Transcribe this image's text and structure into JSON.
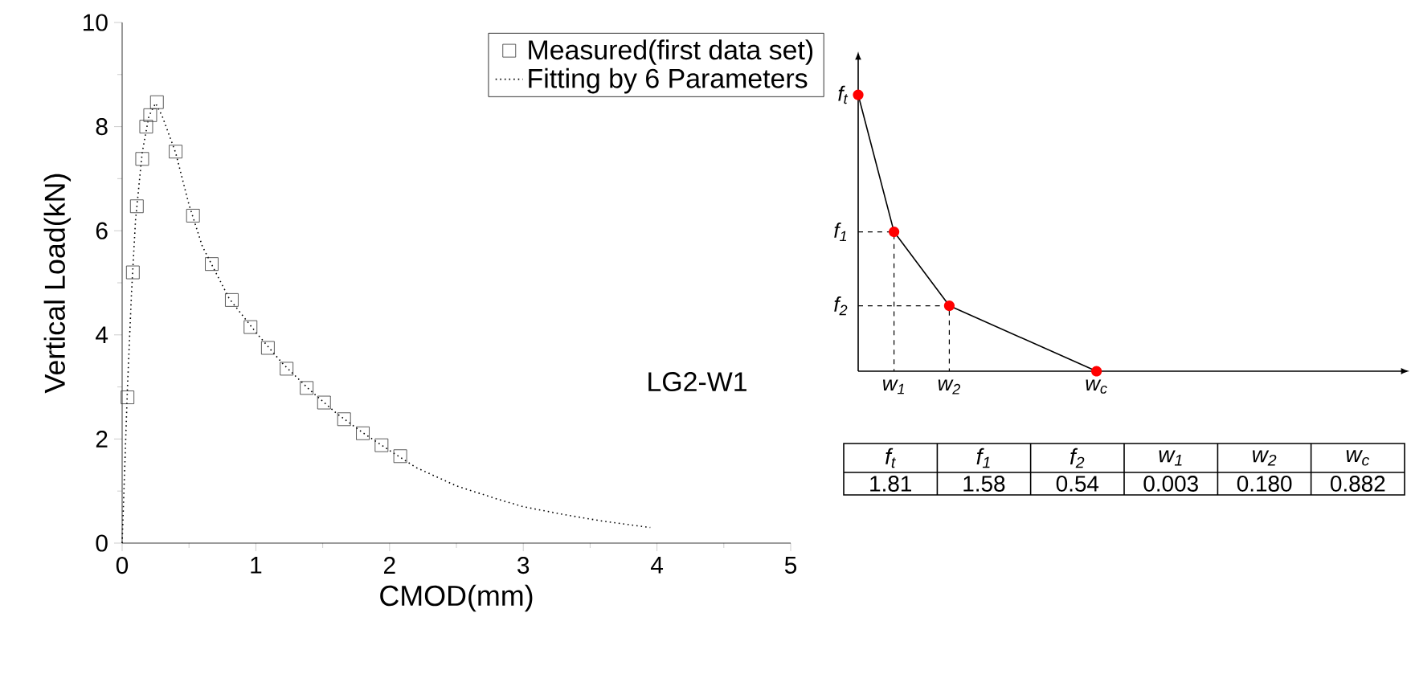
{
  "chart_data": [
    {
      "type": "line",
      "xlabel": "CMOD(mm)",
      "ylabel": "Vertical Load(kN)",
      "xlim": [
        0,
        5
      ],
      "ylim": [
        0,
        10
      ],
      "xticks": [
        0,
        1,
        2,
        3,
        4,
        5
      ],
      "yticks": [
        0,
        2,
        4,
        6,
        8,
        10
      ],
      "grid": false,
      "legend": "top right",
      "annotations": [
        "LG2-W1"
      ],
      "series": [
        {
          "name": "Measured(first data set)",
          "type": "scatter",
          "marker": "square",
          "color": "#333333",
          "x": [
            0.04,
            0.08,
            0.11,
            0.15,
            0.18,
            0.21,
            0.26,
            0.4,
            0.53,
            0.67,
            0.82,
            0.96,
            1.09,
            1.23,
            1.38,
            1.51,
            1.66,
            1.8,
            1.94,
            2.08
          ],
          "values": [
            2.8,
            5.2,
            6.47,
            7.38,
            8.0,
            8.22,
            8.47,
            7.52,
            6.29,
            5.36,
            4.67,
            4.15,
            3.75,
            3.35,
            2.98,
            2.7,
            2.38,
            2.11,
            1.88,
            1.67
          ]
        },
        {
          "name": "Fitting by 6 Parameters",
          "type": "line",
          "line_style": "dotted",
          "marker": "none",
          "color": "#000000",
          "x": [
            0,
            0.02,
            0.04,
            0.07,
            0.1,
            0.15,
            0.2,
            0.25,
            0.3,
            0.4,
            0.5,
            0.6,
            0.8,
            1.0,
            1.2,
            1.4,
            1.6,
            1.8,
            2.0,
            2.2,
            2.5,
            2.8,
            3.0,
            3.3,
            3.6,
            3.95
          ],
          "values": [
            0,
            1.5,
            3.0,
            4.8,
            6.2,
            7.5,
            8.2,
            8.45,
            8.2,
            7.5,
            6.5,
            5.7,
            4.7,
            4.05,
            3.45,
            2.95,
            2.5,
            2.12,
            1.78,
            1.45,
            1.1,
            0.85,
            0.7,
            0.55,
            0.42,
            0.3
          ]
        }
      ]
    },
    {
      "type": "other",
      "annotations": [
        "f$_{t}$",
        "f$_{1}$",
        "f$_{2}$",
        "w$_{1}$",
        "w$_{2}$",
        "w$_{c}$"
      ]
    },
    {
      "type": "other",
      "categories": [
        "f$_{t}$",
        "f$_{1}$",
        "f$_{2}$",
        "w$_{1}$",
        "w$_{2}$",
        "w$_{c}$"
      ],
      "value_labels": [
        "1.81",
        "1.58",
        "0.54",
        "0.003",
        "0.180",
        "0.882"
      ]
    }
  ]
}
